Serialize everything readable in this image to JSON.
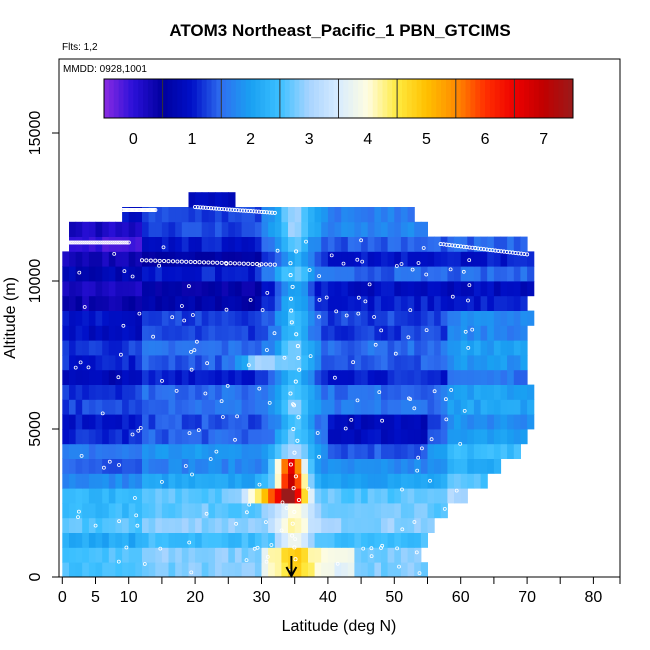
{
  "chart_data": {
    "type": "heatmap",
    "title": "ATOM3 Northeast_Pacific_1 PBN_GTCIMS",
    "flights_label": "Flts: 1,2",
    "dates_label": "MMDD: 0928,1001",
    "xlabel": "Latitude (deg N)",
    "ylabel": "Altitude (m)",
    "xlim": [
      -0.5,
      84
    ],
    "ylim": [
      0,
      17500
    ],
    "x_ticks": [
      0,
      5,
      10,
      20,
      30,
      40,
      50,
      60,
      70,
      80
    ],
    "x_minor_ticks": [
      15,
      25,
      35,
      45,
      55,
      65,
      75,
      84
    ],
    "y_ticks": [
      0,
      5000,
      10000,
      15000
    ],
    "colorbar": {
      "min": -0.5,
      "max": 7.5,
      "ticks": [
        0,
        1,
        2,
        3,
        4,
        5,
        6,
        7
      ],
      "stops": [
        {
          "v": -0.5,
          "c": "#8b2be2"
        },
        {
          "v": 0.0,
          "c": "#2a10d8"
        },
        {
          "v": 0.5,
          "c": "#00009e"
        },
        {
          "v": 1.0,
          "c": "#0010c8"
        },
        {
          "v": 1.5,
          "c": "#2f6ff0"
        },
        {
          "v": 2.0,
          "c": "#19a0f2"
        },
        {
          "v": 2.5,
          "c": "#3cc0ff"
        },
        {
          "v": 3.0,
          "c": "#a8d4ff"
        },
        {
          "v": 3.5,
          "c": "#d8ecff"
        },
        {
          "v": 4.0,
          "c": "#fffde0"
        },
        {
          "v": 4.5,
          "c": "#ffea40"
        },
        {
          "v": 5.0,
          "c": "#ffc000"
        },
        {
          "v": 5.5,
          "c": "#ff8c00"
        },
        {
          "v": 6.0,
          "c": "#ff3000"
        },
        {
          "v": 6.5,
          "c": "#ee0000"
        },
        {
          "v": 7.0,
          "c": "#c00000"
        },
        {
          "v": 7.5,
          "c": "#9a1a1a"
        }
      ]
    },
    "arrow_latitude": 34.5,
    "grid": false
  }
}
